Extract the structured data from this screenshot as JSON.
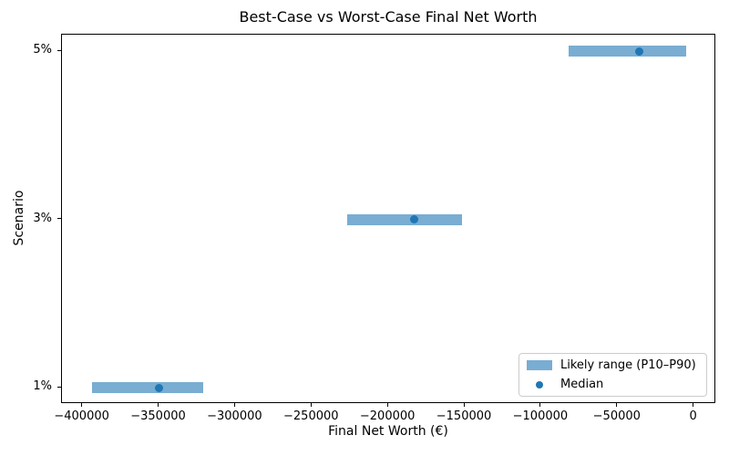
{
  "chart_data": {
    "type": "bar",
    "orientation": "horizontal_range",
    "title": "Best-Case vs Worst-Case Final Net Worth",
    "xlabel": "Final Net Worth (€)",
    "ylabel": "Scenario",
    "categories": [
      "1%",
      "3%",
      "5%"
    ],
    "series": [
      {
        "scenario": "1%",
        "p10": -394000,
        "median": -350000,
        "p90": -321000
      },
      {
        "scenario": "3%",
        "p10": -227000,
        "median": -183000,
        "p90": -152000
      },
      {
        "scenario": "5%",
        "p10": -82000,
        "median": -36000,
        "p90": -5000
      }
    ],
    "xlim": [
      -413500,
      14500
    ],
    "xticks": [
      -400000,
      -350000,
      -300000,
      -250000,
      -200000,
      -150000,
      -100000,
      -50000,
      0
    ],
    "xtick_labels": [
      "−400000",
      "−350000",
      "−300000",
      "−250000",
      "−200000",
      "−150000",
      "−100000",
      "−50000",
      "0"
    ],
    "grid": false,
    "legend": {
      "position": "lower right",
      "range_label": "Likely range (P10–P90)",
      "median_label": "Median"
    },
    "colors": {
      "bar": "#1f77b4",
      "bar_alpha": 0.6,
      "median_dot": "#1f77b4",
      "spine": "#000000",
      "legend_border": "#cccccc"
    }
  }
}
